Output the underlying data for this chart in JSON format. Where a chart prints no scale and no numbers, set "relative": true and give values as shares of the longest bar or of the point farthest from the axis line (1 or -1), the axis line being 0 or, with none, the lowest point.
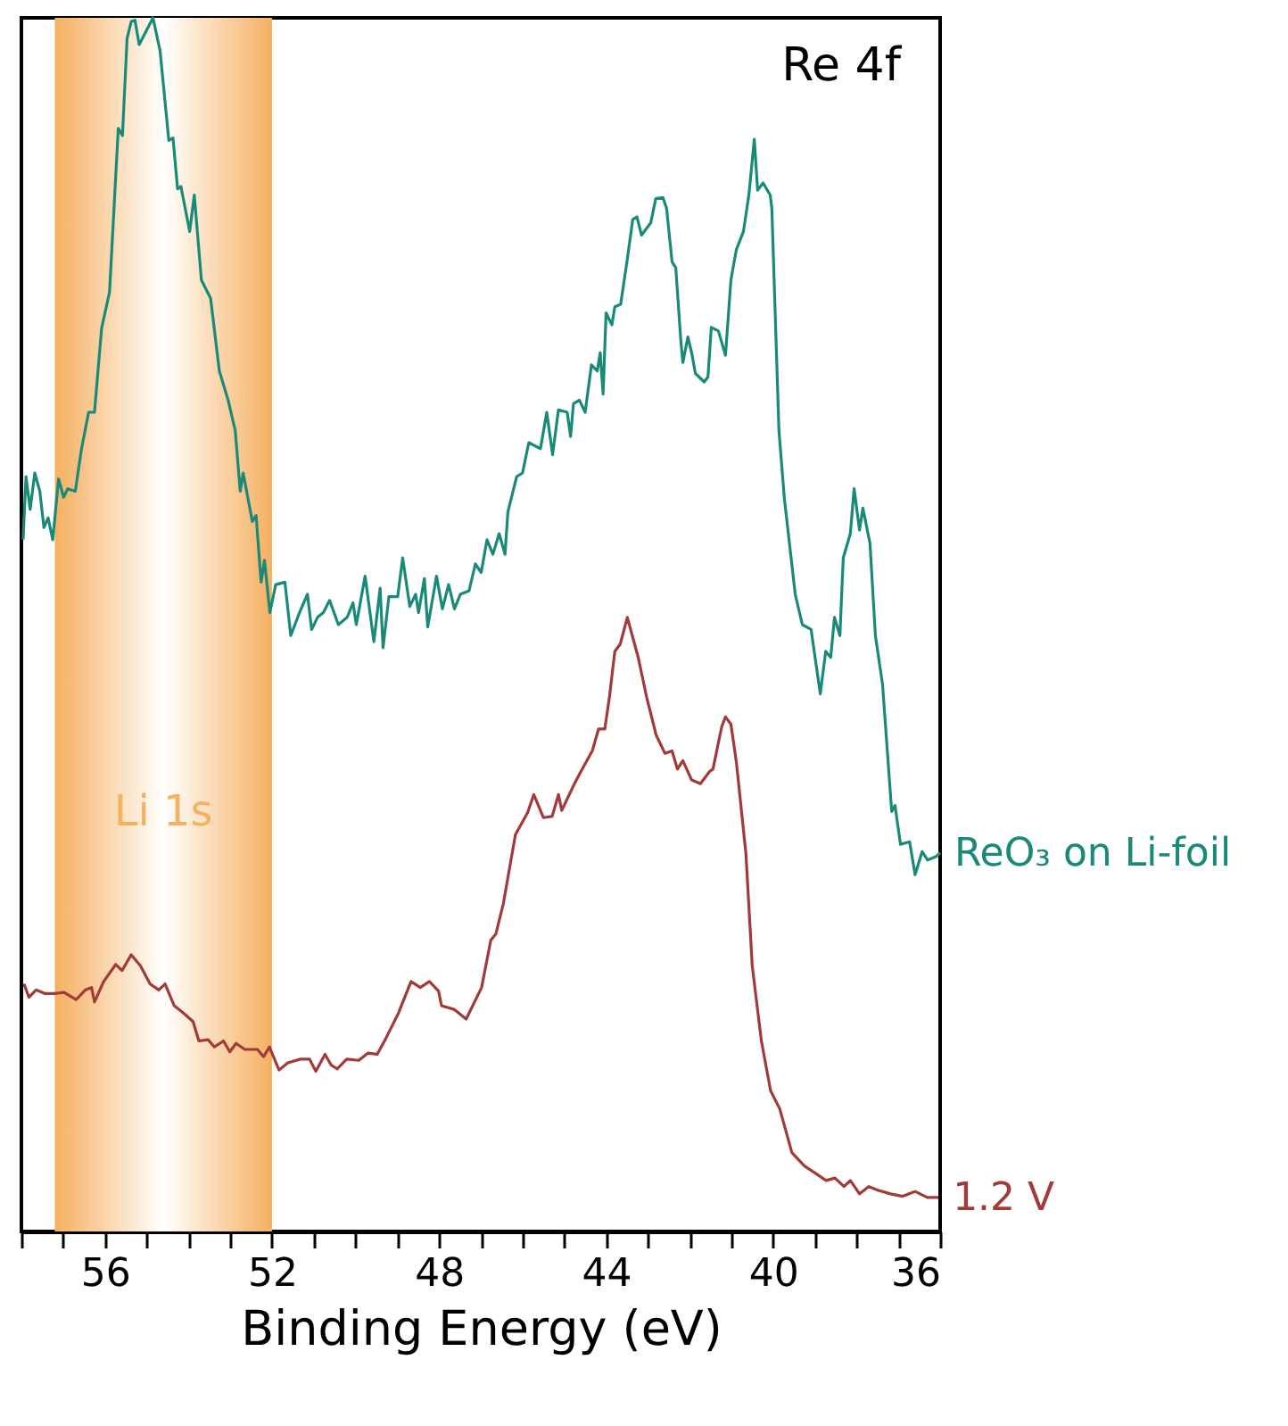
{
  "chart_data": {
    "type": "line",
    "xlabel": "Binding Energy (eV)",
    "relative": true,
    "tick_labels": "x",
    "xlim": [
      58,
      36
    ],
    "xticks": [
      {
        "value": 58,
        "label": null
      },
      {
        "value": 57,
        "label": null
      },
      56,
      {
        "value": 55,
        "label": null
      },
      {
        "value": 54,
        "label": null
      },
      {
        "value": 53,
        "label": null
      },
      52,
      {
        "value": 51,
        "label": null
      },
      {
        "value": 50,
        "label": null
      },
      {
        "value": 49,
        "label": null
      },
      48,
      {
        "value": 47,
        "label": null
      },
      {
        "value": 46,
        "label": null
      },
      {
        "value": 45,
        "label": null
      },
      44,
      {
        "value": 43,
        "label": null
      },
      {
        "value": 42,
        "label": null
      },
      {
        "value": 41,
        "label": null
      },
      40,
      {
        "value": 39,
        "label": null
      },
      {
        "value": 38,
        "label": null
      },
      {
        "value": 37,
        "label": null
      },
      36
    ],
    "annotations": [
      "Re 4f"
    ],
    "bands": [
      {
        "axis": "x",
        "from": 57.2,
        "to": 52.0,
        "label": "Li 1s",
        "color": "#f5b060"
      }
    ],
    "series": [
      {
        "name": "ReO₃ on Li-foil",
        "color": "#1a8a78",
        "x": [
          57.96,
          57.89,
          57.79,
          57.68,
          57.56,
          57.46,
          57.36,
          57.25,
          57.11,
          56.99,
          56.89,
          56.71,
          56.56,
          56.39,
          56.25,
          56.08,
          55.89,
          55.68,
          55.58,
          55.47,
          55.37,
          55.28,
          55.18,
          54.85,
          54.68,
          54.47,
          54.37,
          54.26,
          54.18,
          53.97,
          53.86,
          53.69,
          53.47,
          53.26,
          53.05,
          52.88,
          52.76,
          52.69,
          52.47,
          52.38,
          52.26,
          52.18,
          52.05,
          51.91,
          51.69,
          51.55,
          51.34,
          51.15,
          51.05,
          50.91,
          50.77,
          50.62,
          50.41,
          50.2,
          50.06,
          49.98,
          49.77,
          49.56,
          49.41,
          49.34,
          49.2,
          48.99,
          48.87,
          48.7,
          48.56,
          48.49,
          48.35,
          48.27,
          48.06,
          47.92,
          47.77,
          47.63,
          47.49,
          47.28,
          47.13,
          46.99,
          46.85,
          46.71,
          46.56,
          46.42,
          46.35,
          46.14,
          46.0,
          45.85,
          45.57,
          45.42,
          45.28,
          45.14,
          44.93,
          44.85,
          44.78,
          44.64,
          44.5,
          44.35,
          44.21,
          44.14,
          44.07,
          44.0,
          43.86,
          43.79,
          43.65,
          43.5,
          43.36,
          43.26,
          43.15,
          42.93,
          42.81,
          42.64,
          42.55,
          42.42,
          42.33,
          42.21,
          42.16,
          42.04,
          41.95,
          41.86,
          41.65,
          41.56,
          41.48,
          41.31,
          41.14,
          41.01,
          40.88,
          40.71,
          40.58,
          40.45,
          40.37,
          40.24,
          40.07,
          40.03,
          39.86,
          39.73,
          39.47,
          39.3,
          39.09,
          38.87,
          38.74,
          38.62,
          38.53,
          38.4,
          38.32,
          38.15,
          38.06,
          37.93,
          37.85,
          37.68,
          37.55,
          37.38,
          37.16,
          37.08,
          36.95,
          36.73,
          36.6,
          36.43,
          36.3,
          36.09,
          36.0
        ],
        "values": [
          0.57,
          0.622,
          0.595,
          0.625,
          0.61,
          0.58,
          0.588,
          0.57,
          0.62,
          0.605,
          0.612,
          0.61,
          0.645,
          0.675,
          0.675,
          0.744,
          0.774,
          0.909,
          0.903,
          0.983,
          0.997,
          0.998,
          0.978,
          1.0,
          0.973,
          0.899,
          0.901,
          0.859,
          0.861,
          0.824,
          0.854,
          0.784,
          0.769,
          0.709,
          0.685,
          0.66,
          0.61,
          0.625,
          0.585,
          0.59,
          0.535,
          0.553,
          0.51,
          0.533,
          0.535,
          0.491,
          0.51,
          0.525,
          0.496,
          0.506,
          0.51,
          0.52,
          0.5,
          0.506,
          0.518,
          0.5,
          0.54,
          0.486,
          0.53,
          0.481,
          0.523,
          0.523,
          0.555,
          0.515,
          0.525,
          0.51,
          0.538,
          0.498,
          0.54,
          0.513,
          0.533,
          0.513,
          0.525,
          0.528,
          0.55,
          0.543,
          0.57,
          0.558,
          0.575,
          0.558,
          0.593,
          0.622,
          0.625,
          0.65,
          0.645,
          0.675,
          0.64,
          0.677,
          0.675,
          0.655,
          0.682,
          0.685,
          0.675,
          0.714,
          0.709,
          0.724,
          0.69,
          0.757,
          0.747,
          0.762,
          0.764,
          0.799,
          0.834,
          0.836,
          0.821,
          0.831,
          0.851,
          0.852,
          0.843,
          0.799,
          0.794,
          0.734,
          0.716,
          0.737,
          0.724,
          0.707,
          0.7,
          0.704,
          0.745,
          0.742,
          0.722,
          0.784,
          0.809,
          0.824,
          0.854,
          0.9,
          0.858,
          0.864,
          0.854,
          0.843,
          0.66,
          0.604,
          0.525,
          0.5,
          0.496,
          0.443,
          0.478,
          0.473,
          0.506,
          0.491,
          0.555,
          0.575,
          0.612,
          0.578,
          0.596,
          0.567,
          0.491,
          0.451,
          0.346,
          0.351,
          0.319,
          0.321,
          0.294,
          0.313,
          0.306,
          0.309,
          0.312
        ]
      },
      {
        "name": "1.2 V",
        "color": "#a33a3a",
        "x": [
          57.94,
          57.82,
          57.65,
          57.43,
          57.21,
          56.98,
          56.69,
          56.47,
          56.32,
          56.25,
          56.03,
          55.74,
          55.59,
          55.37,
          55.15,
          54.92,
          54.71,
          54.56,
          54.34,
          54.12,
          53.89,
          53.75,
          53.53,
          53.38,
          53.16,
          53.01,
          52.86,
          52.65,
          52.35,
          52.2,
          52.06,
          51.83,
          51.62,
          51.32,
          51.1,
          50.95,
          50.73,
          50.58,
          50.44,
          50.21,
          49.92,
          49.7,
          49.48,
          49.26,
          48.97,
          48.67,
          48.45,
          48.23,
          48.01,
          47.94,
          47.64,
          47.35,
          46.98,
          46.76,
          46.64,
          46.46,
          46.17,
          45.88,
          45.73,
          45.5,
          45.29,
          45.14,
          45.06,
          44.77,
          44.62,
          44.33,
          44.18,
          44.03,
          43.92,
          43.79,
          43.66,
          43.49,
          43.23,
          43.02,
          42.8,
          42.59,
          42.42,
          42.29,
          42.16,
          41.95,
          41.74,
          41.52,
          41.44,
          41.23,
          41.14,
          41.01,
          40.88,
          40.65,
          40.5,
          40.28,
          40.06,
          39.84,
          39.55,
          39.25,
          39.03,
          38.73,
          38.52,
          38.3,
          38.15,
          37.93,
          37.71,
          37.49,
          37.19,
          36.9,
          36.6,
          36.31,
          36.04
        ],
        "values": [
          0.204,
          0.193,
          0.199,
          0.196,
          0.196,
          0.197,
          0.191,
          0.199,
          0.201,
          0.189,
          0.206,
          0.22,
          0.215,
          0.228,
          0.219,
          0.204,
          0.199,
          0.204,
          0.186,
          0.18,
          0.173,
          0.157,
          0.158,
          0.152,
          0.157,
          0.148,
          0.155,
          0.15,
          0.15,
          0.144,
          0.152,
          0.133,
          0.139,
          0.142,
          0.142,
          0.132,
          0.146,
          0.137,
          0.134,
          0.142,
          0.141,
          0.147,
          0.146,
          0.16,
          0.18,
          0.206,
          0.201,
          0.206,
          0.198,
          0.186,
          0.183,
          0.175,
          0.201,
          0.24,
          0.245,
          0.27,
          0.327,
          0.345,
          0.36,
          0.341,
          0.342,
          0.36,
          0.347,
          0.368,
          0.378,
          0.396,
          0.414,
          0.414,
          0.44,
          0.478,
          0.484,
          0.506,
          0.473,
          0.439,
          0.409,
          0.394,
          0.396,
          0.381,
          0.388,
          0.372,
          0.369,
          0.379,
          0.381,
          0.416,
          0.424,
          0.418,
          0.387,
          0.311,
          0.219,
          0.157,
          0.116,
          0.101,
          0.065,
          0.054,
          0.049,
          0.042,
          0.044,
          0.037,
          0.042,
          0.031,
          0.037,
          0.034,
          0.031,
          0.029,
          0.033,
          0.028,
          0.028
        ]
      }
    ]
  }
}
